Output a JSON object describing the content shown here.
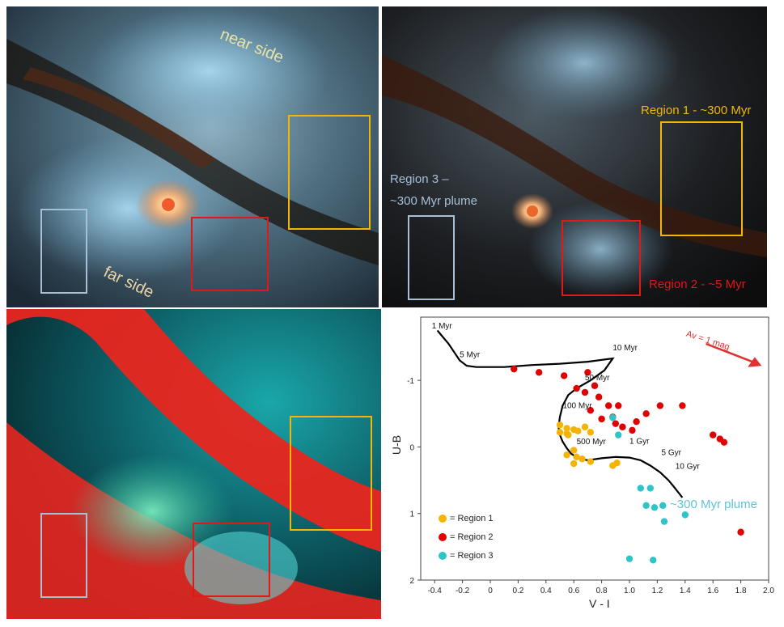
{
  "colors": {
    "region1": "#f5b400",
    "region2": "#e00000",
    "region3": "#2ec4c8",
    "box_region1": "#f2b705",
    "box_region2": "#e01818",
    "box_region3": "#a9bfd6",
    "track": "#000000",
    "av_arrow": "#e23030"
  },
  "panels": {
    "top_left": {
      "near_side": "near side",
      "far_side": "far side"
    },
    "top_right": {
      "region1_label": "Region 1 - ~300 Myr",
      "region2_label": "Region 2 - ~5 Myr",
      "region3_label_line1": "Region 3 –",
      "region3_label_line2": "~300 Myr plume"
    },
    "legend": {
      "r1": "= Region 1",
      "r2": "= Region 2",
      "r3": "= Region 3"
    },
    "plume_label": "~300 Myr plume",
    "av_label": "Av = 1 mag"
  },
  "chart_data": {
    "type": "scatter",
    "xlabel": "V - I",
    "ylabel": "U-B",
    "xlim": [
      -0.5,
      2.0
    ],
    "ylim": [
      2,
      -1.6
    ],
    "y_inverted": true,
    "xticks": [
      "-0.4",
      "-0.2",
      "0",
      "0.2",
      "0.4",
      "0.6",
      "0.8",
      "1.0",
      "1.2",
      "1.4",
      "1.6",
      "1.8",
      "2.0"
    ],
    "yticks": [
      "-1",
      "0",
      "1",
      "2"
    ],
    "ytick_values": [
      -1,
      0,
      1,
      2
    ],
    "xtick_values": [
      -0.4,
      -0.2,
      0,
      0.2,
      0.4,
      0.6,
      0.8,
      1.0,
      1.2,
      1.4,
      1.6,
      1.8,
      2.0
    ],
    "track": {
      "x": [
        -0.38,
        -0.3,
        -0.22,
        -0.17,
        -0.1,
        0.1,
        0.3,
        0.5,
        0.7,
        0.88,
        0.82,
        0.72,
        0.62,
        0.56,
        0.52,
        0.5,
        0.49,
        0.5,
        0.52,
        0.55,
        0.58,
        0.63,
        0.7,
        0.8,
        0.9,
        1.0,
        1.08,
        1.15,
        1.22,
        1.28,
        1.32,
        1.35,
        1.38
      ],
      "y": [
        -1.75,
        -1.55,
        -1.3,
        -1.22,
        -1.2,
        -1.2,
        -1.23,
        -1.25,
        -1.28,
        -1.33,
        -1.15,
        -1.0,
        -0.88,
        -0.78,
        -0.62,
        -0.45,
        -0.3,
        -0.18,
        -0.08,
        0.02,
        0.1,
        0.17,
        0.2,
        0.17,
        0.15,
        0.16,
        0.2,
        0.28,
        0.38,
        0.5,
        0.6,
        0.68,
        0.76
      ]
    },
    "age_labels": [
      {
        "text": "1 Myr",
        "x": -0.42,
        "y": -1.78
      },
      {
        "text": "5 Myr",
        "x": -0.22,
        "y": -1.35
      },
      {
        "text": "10 Myr",
        "x": 0.88,
        "y": -1.45
      },
      {
        "text": "50 Myr",
        "x": 0.68,
        "y": -1.0
      },
      {
        "text": "100 Myr",
        "x": 0.52,
        "y": -0.58
      },
      {
        "text": "500 Myr",
        "x": 0.62,
        "y": -0.04
      },
      {
        "text": "1 Gyr",
        "x": 1.0,
        "y": -0.05
      },
      {
        "text": "5 Gyr",
        "x": 1.23,
        "y": 0.12
      },
      {
        "text": "10 Gyr",
        "x": 1.33,
        "y": 0.33
      }
    ],
    "series": [
      {
        "name": "Region 1",
        "x": [
          0.5,
          0.55,
          0.6,
          0.55,
          0.63,
          0.68,
          0.72,
          0.6,
          0.55,
          0.62,
          0.66,
          0.72,
          0.88,
          0.91,
          0.6,
          0.5,
          0.56
        ],
        "y": [
          -0.33,
          -0.28,
          -0.26,
          -0.2,
          -0.24,
          -0.3,
          -0.22,
          0.05,
          0.12,
          0.15,
          0.18,
          0.22,
          0.28,
          0.24,
          0.25,
          -0.22,
          -0.18
        ]
      },
      {
        "name": "Region 2",
        "x": [
          0.17,
          0.35,
          0.53,
          0.7,
          0.75,
          0.62,
          0.68,
          0.78,
          0.85,
          0.8,
          0.9,
          1.05,
          1.22,
          1.38,
          1.6,
          1.65,
          1.68,
          1.8,
          0.72,
          0.92,
          0.88,
          0.95,
          1.02,
          1.12
        ],
        "y": [
          -1.17,
          -1.12,
          -1.07,
          -1.12,
          -0.92,
          -0.88,
          -0.82,
          -0.75,
          -0.62,
          -0.42,
          -0.35,
          -0.38,
          -0.62,
          -0.62,
          -0.18,
          -0.12,
          -0.07,
          1.28,
          -0.55,
          -0.62,
          -0.45,
          -0.3,
          -0.25,
          -0.5
        ],
        "y_fix": true
      },
      {
        "name": "Region 3",
        "x": [
          0.88,
          0.92,
          1.08,
          1.15,
          1.18,
          1.24,
          1.25,
          1.4,
          1.12,
          1.0,
          1.17
        ],
        "y": [
          -0.44,
          -0.18,
          0.62,
          0.62,
          0.91,
          0.88,
          1.12,
          1.02,
          0.88,
          1.68,
          1.7
        ]
      }
    ]
  }
}
